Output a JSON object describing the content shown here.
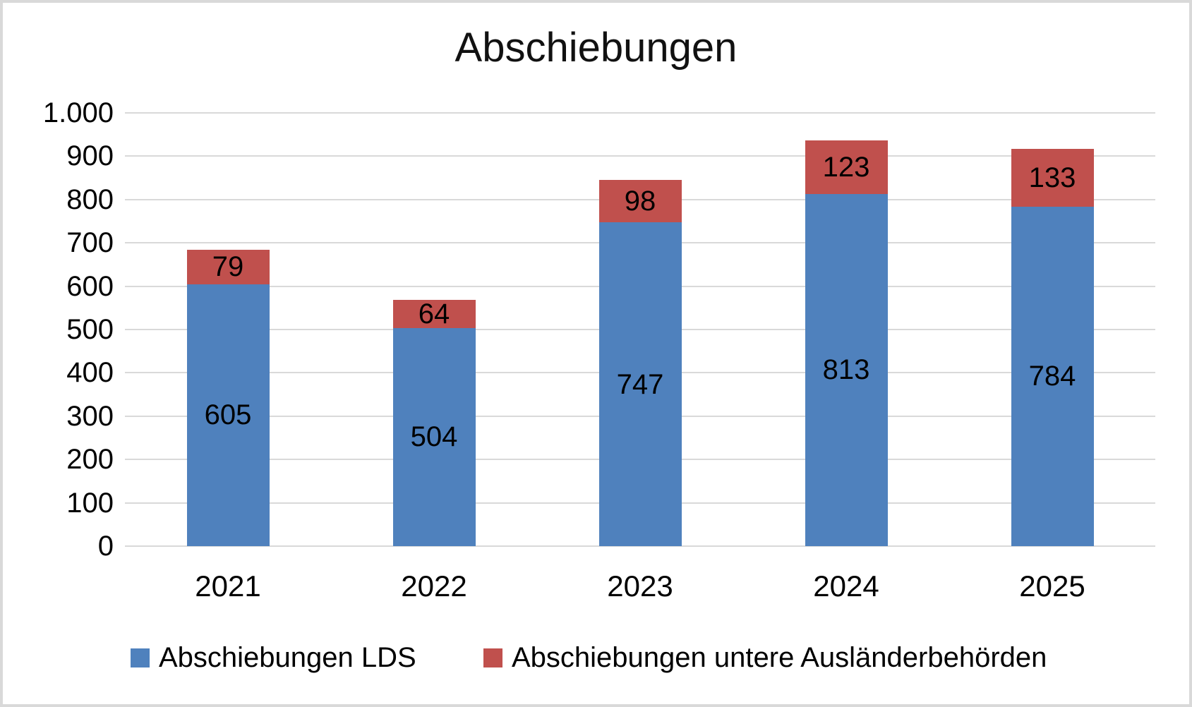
{
  "chart_data": {
    "type": "bar",
    "stacked": true,
    "title": "Abschiebungen",
    "categories": [
      "2021",
      "2022",
      "2023",
      "2024",
      "2025"
    ],
    "series": [
      {
        "name": "Abschiebungen LDS",
        "color": "#4f81bd",
        "values": [
          605,
          504,
          747,
          813,
          784
        ]
      },
      {
        "name": "Abschiebungen untere Ausländerbehörden",
        "color": "#c0504d",
        "values": [
          79,
          64,
          98,
          123,
          133
        ]
      }
    ],
    "xlabel": "",
    "ylabel": "",
    "ylim": [
      0,
      1000
    ],
    "yticks": [
      {
        "value": 0,
        "label": "0"
      },
      {
        "value": 100,
        "label": "100"
      },
      {
        "value": 200,
        "label": "200"
      },
      {
        "value": 300,
        "label": "300"
      },
      {
        "value": 400,
        "label": "400"
      },
      {
        "value": 500,
        "label": "500"
      },
      {
        "value": 600,
        "label": "600"
      },
      {
        "value": 700,
        "label": "700"
      },
      {
        "value": 800,
        "label": "800"
      },
      {
        "value": 900,
        "label": "900"
      },
      {
        "value": 1000,
        "label": "1.000"
      }
    ],
    "grid": true,
    "gridline_color": "#d9d9d9",
    "legend_position": "bottom",
    "data_labels": "center"
  }
}
